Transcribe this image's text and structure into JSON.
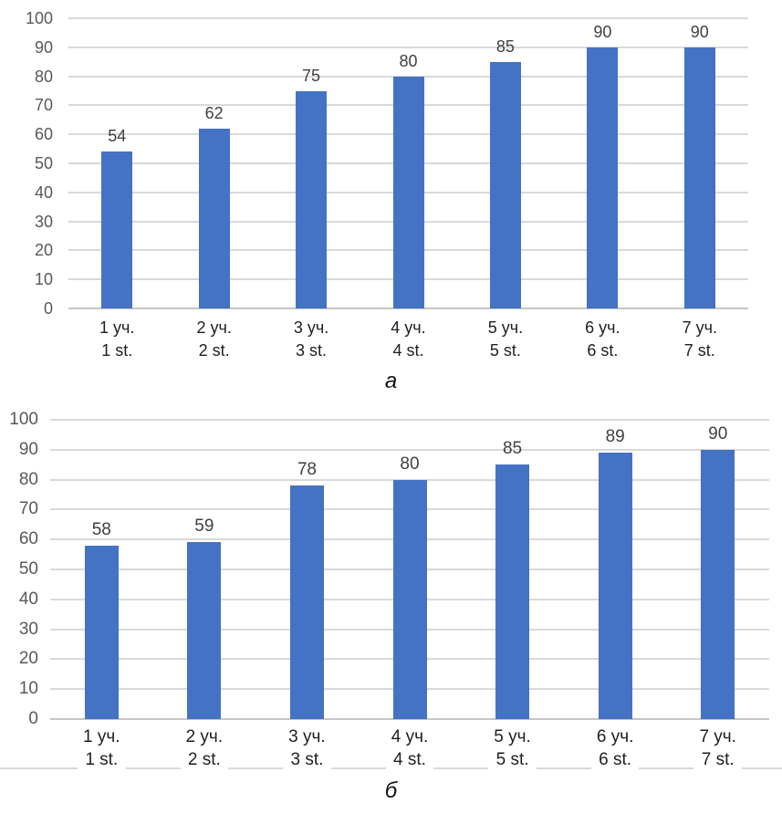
{
  "figure": {
    "background": "#ffffff"
  },
  "chart_data": [
    {
      "type": "bar",
      "caption": "а",
      "categories": [
        "1 уч.\n1 st.",
        "2 уч.\n2 st.",
        "3 уч.\n3 st.",
        "4 уч.\n4 st.",
        "5 уч.\n5 st.",
        "6 уч.\n6 st.",
        "7 уч.\n7 st."
      ],
      "values": [
        54,
        62,
        75,
        80,
        85,
        90,
        90
      ],
      "title": "",
      "xlabel": "",
      "ylabel": "",
      "ylim": [
        0,
        100
      ],
      "ytick_step": 10,
      "ytick_labels": [
        "0",
        "10",
        "20",
        "30",
        "40",
        "50",
        "60",
        "70",
        "80",
        "90",
        "100"
      ],
      "grid": true,
      "legend_position": "none",
      "value_labels_shown": true,
      "bar_color": "#4472C4",
      "gridline_color": "#D9D9D9",
      "axis_line_color": "#C6C6C6",
      "tick_label_color": "#595959",
      "value_label_color": "#404040"
    },
    {
      "type": "bar",
      "caption": "б",
      "categories": [
        "1 уч.\n1 st.",
        "2 уч.\n2 st.",
        "3 уч.\n3 st.",
        "4 уч.\n4 st.",
        "5 уч.\n5 st.",
        "6 уч.\n6 st.",
        "7 уч.\n7 st."
      ],
      "values": [
        58,
        59,
        78,
        80,
        85,
        89,
        90
      ],
      "title": "",
      "xlabel": "",
      "ylabel": "",
      "ylim": [
        0,
        100
      ],
      "ytick_step": 10,
      "ytick_labels": [
        "0",
        "10",
        "20",
        "30",
        "40",
        "50",
        "60",
        "70",
        "80",
        "90",
        "100"
      ],
      "grid": true,
      "legend_position": "none",
      "value_labels_shown": true,
      "bar_color": "#4472C4",
      "gridline_color": "#D9D9D9",
      "axis_line_color": "#C6C6C6",
      "tick_label_color": "#595959",
      "value_label_color": "#404040"
    }
  ]
}
